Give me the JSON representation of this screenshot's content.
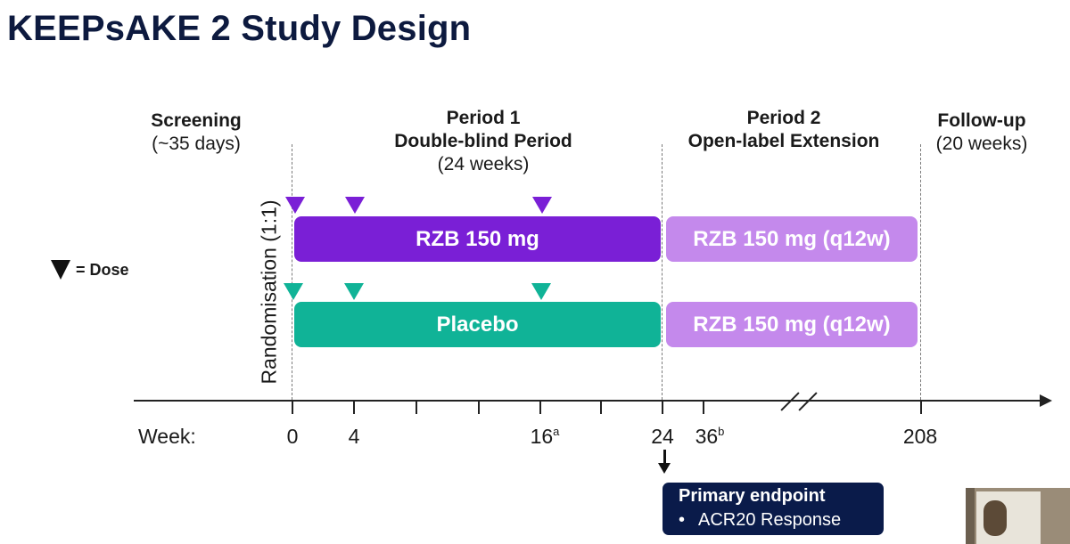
{
  "title": "KEEPsAKE 2 Study Design",
  "phases": {
    "screening": {
      "label": "Screening",
      "detail": "(~35 days)"
    },
    "period1": {
      "label": "Period 1",
      "sublabel": "Double-blind Period",
      "detail": "(24 weeks)"
    },
    "period2": {
      "label": "Period 2",
      "sublabel": "Open-label Extension"
    },
    "followup": {
      "label": "Follow-up",
      "detail": "(20 weeks)"
    }
  },
  "randomisation": "Randomisation (1:1)",
  "legend": {
    "label": "= Dose"
  },
  "arms": {
    "rzb": {
      "label": "RZB 150 mg",
      "extension_label": "RZB 150 mg (q12w)",
      "color": "#7a1fd6",
      "extension_color": "#c489ec",
      "dose_weeks": [
        0,
        4,
        16
      ]
    },
    "placebo": {
      "label": "Placebo",
      "extension_label": "RZB 150 mg (q12w)",
      "color": "#10b397",
      "extension_color": "#c489ec",
      "dose_weeks": [
        0,
        4,
        16
      ]
    }
  },
  "axis": {
    "label": "Week:",
    "ticks": [
      {
        "label": "0",
        "sup": ""
      },
      {
        "label": "4",
        "sup": ""
      },
      {
        "label": "16",
        "sup": "a"
      },
      {
        "label": "24",
        "sup": ""
      },
      {
        "label": "36",
        "sup": "b"
      },
      {
        "label": "208",
        "sup": ""
      }
    ]
  },
  "primary_endpoint": {
    "title": "Primary endpoint",
    "bullet": "•",
    "item": "ACR20 Response"
  }
}
